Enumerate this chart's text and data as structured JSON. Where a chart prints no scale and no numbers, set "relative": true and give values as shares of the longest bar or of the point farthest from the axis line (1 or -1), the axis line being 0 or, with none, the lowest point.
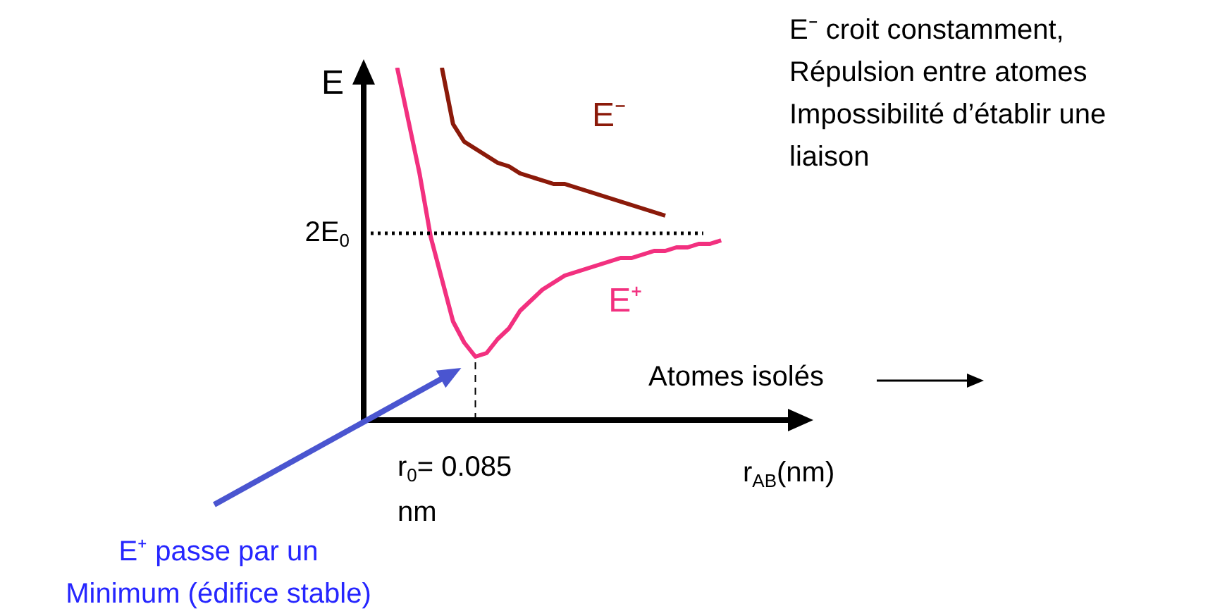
{
  "chart_data": {
    "type": "line",
    "xlabel": "r$_{AB}$(nm)",
    "ylabel": "E",
    "relative": true,
    "marker": "none",
    "line_style": "solid",
    "categories": [
      null,
      null,
      null,
      null,
      null,
      null,
      null,
      null,
      null,
      null,
      null,
      null,
      null,
      null,
      null,
      null,
      null,
      null,
      null,
      null,
      null,
      null,
      null,
      null,
      null,
      null,
      null,
      null,
      null,
      null,
      null,
      null,
      null,
      null,
      null,
      null,
      null,
      null,
      null,
      null,
      null
    ],
    "series": [
      {
        "name": "E⁻",
        "color": "#8b1a0a",
        "values": [
          null,
          null,
          null,
          null,
          null,
          null,
          null,
          1.0,
          0.84,
          0.79,
          0.77,
          0.75,
          0.73,
          0.72,
          0.7,
          0.69,
          0.68,
          0.67,
          0.67,
          0.66,
          0.65,
          0.64,
          0.63,
          0.62,
          0.61,
          0.6,
          0.59,
          0.58,
          null,
          null,
          null,
          null,
          null,
          null,
          null,
          null,
          null,
          null,
          null,
          null,
          null
        ]
      },
      {
        "name": "E⁺",
        "color": "#f2307f",
        "values": [
          null,
          null,
          null,
          1.0,
          0.85,
          0.7,
          0.52,
          0.4,
          0.28,
          0.22,
          0.18,
          0.19,
          0.23,
          0.26,
          0.31,
          0.34,
          0.37,
          0.39,
          0.41,
          0.42,
          0.43,
          0.44,
          0.45,
          0.46,
          0.46,
          0.47,
          0.48,
          0.48,
          0.49,
          0.49,
          0.5,
          0.5,
          0.51,
          null,
          null,
          null,
          null,
          null,
          null,
          null,
          null
        ]
      }
    ],
    "ref_lines": [
      {
        "axis": "y",
        "value": 0.53,
        "label": "2E$_{0}$",
        "line_style": "dotted",
        "color": "#000000"
      }
    ],
    "annotations": [
      "E⁻ croit constamment,\nRépulsion entre atomes\nImpossibilité d’établir une\nliaison",
      "Atomes isolés",
      "r$_{0}$= 0.085\nnm",
      "E⁺ passe par un\nMinimum (édifice stable)"
    ]
  }
}
